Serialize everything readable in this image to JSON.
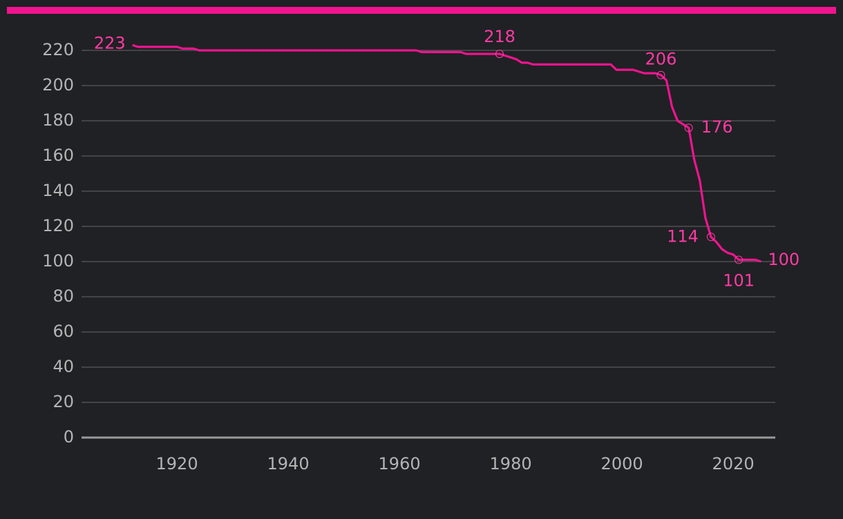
{
  "chart_data": {
    "type": "line",
    "x": [
      1912,
      1913,
      1920,
      1921,
      1923,
      1924,
      1963,
      1964,
      1971,
      1972,
      1978,
      1979,
      1980,
      1981,
      1982,
      1983,
      1984,
      1998,
      1999,
      2002,
      2004,
      2006,
      2007,
      2008,
      2009,
      2010,
      2011,
      2012,
      2013,
      2014,
      2015,
      2016,
      2017,
      2018,
      2019,
      2020,
      2021,
      2024,
      2025
    ],
    "series": [
      {
        "color": "#f0148f",
        "values": [
          223,
          222,
          222,
          221,
          221,
          220,
          220,
          219,
          219,
          218,
          218,
          217,
          216,
          215,
          213,
          213,
          212,
          212,
          209,
          209,
          207,
          207,
          206,
          203,
          188,
          180,
          178,
          176,
          158,
          146,
          125,
          114,
          111,
          107,
          105,
          104,
          101,
          101,
          100
        ]
      }
    ],
    "markers": [
      1978,
      2007,
      2012,
      2016,
      2021
    ],
    "xlim": [
      1903,
      2028
    ],
    "ylim": [
      0,
      220
    ],
    "xticks": [
      1920,
      1940,
      1960,
      1980,
      2000,
      2020
    ],
    "yticks": [
      0,
      20,
      40,
      60,
      80,
      100,
      120,
      140,
      160,
      180,
      200,
      220
    ],
    "grid": true
  }
}
